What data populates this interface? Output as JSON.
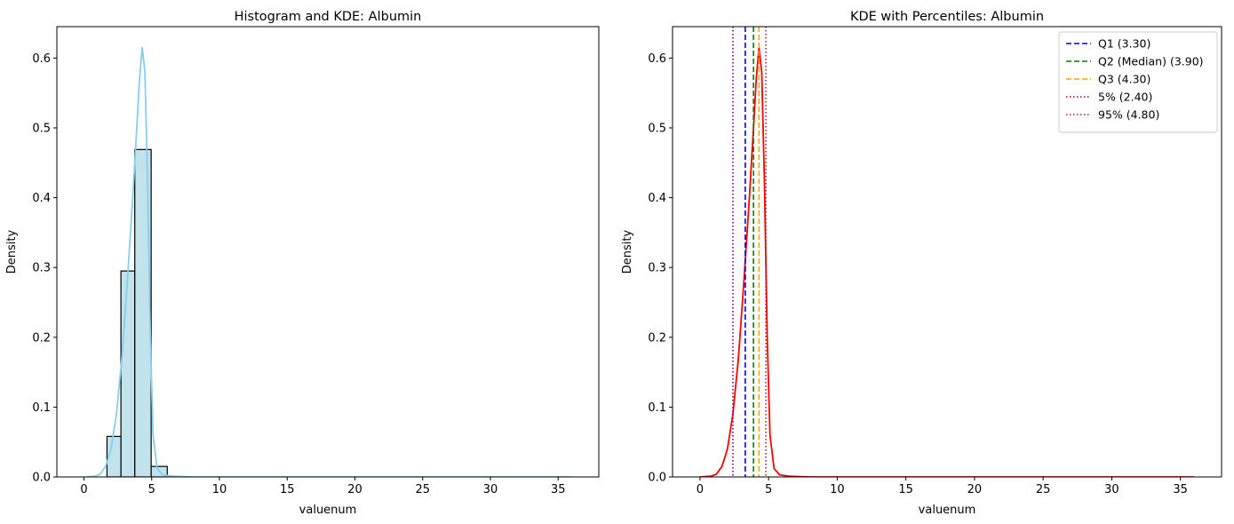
{
  "chart_data": [
    {
      "type": "bar",
      "title": "Histogram and KDE: Albumin",
      "xlabel": "valuenum",
      "ylabel": "Density",
      "xlim": [
        -2.0,
        38.0
      ],
      "ylim": [
        0,
        0.645
      ],
      "x_ticks": [
        "0",
        "5",
        "10",
        "15",
        "20",
        "25",
        "30",
        "35"
      ],
      "x_tick_values": [
        0,
        5,
        10,
        15,
        20,
        25,
        30,
        35
      ],
      "y_ticks": [
        "0.0",
        "0.1",
        "0.2",
        "0.3",
        "0.4",
        "0.5",
        "0.6"
      ],
      "y_tick_values": [
        0,
        0.1,
        0.2,
        0.3,
        0.4,
        0.5,
        0.6
      ],
      "bar_color": "#add8e6",
      "bar_edge_color": "#000000",
      "kde_color": "#87ceeb",
      "histogram": {
        "bin_edges": [
          1.7,
          2.73,
          3.75,
          4.96,
          6.15
        ],
        "densities": [
          0.058,
          0.295,
          0.469,
          0.015
        ]
      },
      "kde": {
        "x": [
          0.2,
          0.8,
          1.2,
          1.6,
          2.0,
          2.4,
          2.8,
          3.2,
          3.6,
          3.9,
          4.1,
          4.3,
          4.5,
          4.7,
          4.9,
          5.1,
          5.4,
          5.8,
          6.5,
          8,
          15,
          25,
          36
        ],
        "y": [
          0.0,
          0.001,
          0.004,
          0.015,
          0.04,
          0.09,
          0.17,
          0.28,
          0.4,
          0.5,
          0.57,
          0.615,
          0.58,
          0.42,
          0.2,
          0.06,
          0.012,
          0.003,
          0.001,
          0.0,
          0.0,
          0.0,
          0.0
        ]
      }
    },
    {
      "type": "line",
      "title": "KDE with Percentiles: Albumin",
      "xlabel": "valuenum",
      "ylabel": "Density",
      "xlim": [
        -2.0,
        38.0
      ],
      "ylim": [
        0,
        0.645
      ],
      "x_ticks": [
        "0",
        "5",
        "10",
        "15",
        "20",
        "25",
        "30",
        "35"
      ],
      "x_tick_values": [
        0,
        5,
        10,
        15,
        20,
        25,
        30,
        35
      ],
      "y_ticks": [
        "0.0",
        "0.1",
        "0.2",
        "0.3",
        "0.4",
        "0.5",
        "0.6"
      ],
      "y_tick_values": [
        0,
        0.1,
        0.2,
        0.3,
        0.4,
        0.5,
        0.6
      ],
      "kde_color": "#ff0000",
      "kde": {
        "x": [
          0.0,
          0.8,
          1.2,
          1.6,
          2.0,
          2.4,
          2.8,
          3.2,
          3.6,
          3.9,
          4.1,
          4.3,
          4.5,
          4.7,
          4.9,
          5.1,
          5.4,
          5.8,
          6.5,
          8,
          15,
          25,
          36
        ],
        "y": [
          0.0,
          0.001,
          0.004,
          0.015,
          0.04,
          0.09,
          0.17,
          0.28,
          0.4,
          0.5,
          0.57,
          0.615,
          0.58,
          0.42,
          0.2,
          0.06,
          0.012,
          0.003,
          0.001,
          0.0,
          0.0,
          0.0,
          0.0
        ]
      },
      "legend_position": "top-right",
      "percentile_lines": [
        {
          "label": "Q1 (3.30)",
          "value": 3.3,
          "color": "#0000ff",
          "style": "dashed"
        },
        {
          "label": "Q2 (Median) (3.90)",
          "value": 3.9,
          "color": "#008000",
          "style": "dashed"
        },
        {
          "label": "Q3 (4.30)",
          "value": 4.3,
          "color": "#ffa500",
          "style": "dashed"
        },
        {
          "label": "5% (2.40)",
          "value": 2.4,
          "color": "#800080",
          "style": "dotted"
        },
        {
          "label": "95% (4.80)",
          "value": 4.8,
          "color": "#a52a2a",
          "style": "dotted"
        }
      ]
    }
  ]
}
